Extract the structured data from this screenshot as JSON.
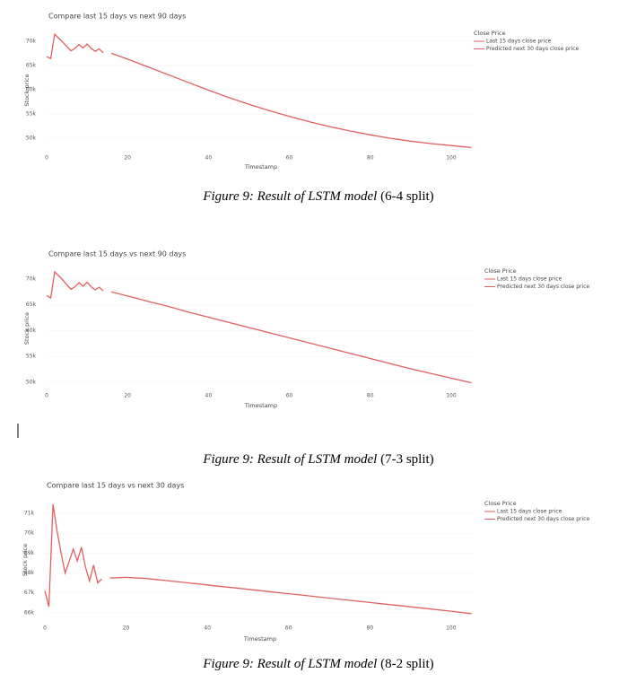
{
  "chart_data": [
    {
      "type": "line",
      "title": "Compare last 15 days vs next 90 days",
      "xlabel": "Timestamp",
      "ylabel": "Stock price",
      "legend_title": "Close Price",
      "caption": [
        "Figure 9: Result of LSTM model",
        "(6-4 split)"
      ],
      "xlim": [
        0,
        106
      ],
      "xticks": [
        0,
        20,
        40,
        60,
        80,
        100
      ],
      "ylim": [
        47800,
        72000
      ],
      "yticks": [
        {
          "value": 50000,
          "label": "50k"
        },
        {
          "value": 55000,
          "label": "55k"
        },
        {
          "value": 60000,
          "label": "60k"
        },
        {
          "value": 65000,
          "label": "65k"
        },
        {
          "value": 70000,
          "label": "70k"
        }
      ],
      "series": [
        {
          "name": "Last 15 days close price",
          "color": "#e06060",
          "x": [
            0,
            1,
            2,
            3,
            4,
            5,
            6,
            7,
            8,
            9,
            10,
            11,
            12,
            13,
            14
          ],
          "values": [
            66800,
            66400,
            71400,
            70600,
            69800,
            68900,
            68000,
            68500,
            69300,
            68600,
            69400,
            68500,
            67900,
            68400,
            67600
          ]
        },
        {
          "name": "Predicted next 30 days close price",
          "color": "#e06060",
          "x": [
            16,
            20,
            25,
            30,
            35,
            40,
            45,
            50,
            55,
            60,
            65,
            70,
            75,
            80,
            85,
            90,
            95,
            100,
            105
          ],
          "values": [
            67500,
            66300,
            64700,
            63100,
            61500,
            59900,
            58400,
            57000,
            55700,
            54500,
            53400,
            52400,
            51500,
            50700,
            50000,
            49400,
            48900,
            48500,
            48100
          ]
        }
      ]
    },
    {
      "type": "line",
      "title": "Compare last 15 days vs next 90 days",
      "xlabel": "Timestamp",
      "ylabel": "Stock price",
      "legend_title": "Close Price",
      "caption": [
        "Figure 9: Result of LSTM model",
        "(7-3 split)"
      ],
      "xlim": [
        0,
        106
      ],
      "xticks": [
        0,
        20,
        40,
        60,
        80,
        100
      ],
      "ylim": [
        48950,
        71900
      ],
      "yticks": [
        {
          "value": 50000,
          "label": "50k"
        },
        {
          "value": 55000,
          "label": "55k"
        },
        {
          "value": 60000,
          "label": "60k"
        },
        {
          "value": 65000,
          "label": "65k"
        },
        {
          "value": 70000,
          "label": "70k"
        }
      ],
      "series": [
        {
          "name": "Last 15 days close price",
          "color": "#e06060",
          "x": [
            0,
            1,
            2,
            3,
            4,
            5,
            6,
            7,
            8,
            9,
            10,
            11,
            12,
            13,
            14
          ],
          "values": [
            66800,
            66300,
            71400,
            70600,
            69800,
            68900,
            68000,
            68500,
            69300,
            68600,
            69400,
            68500,
            67900,
            68400,
            67700
          ]
        },
        {
          "name": "Predicted next 30 days close price",
          "color": "#e06060",
          "x": [
            16,
            20,
            25,
            30,
            35,
            40,
            45,
            50,
            55,
            60,
            65,
            70,
            75,
            80,
            85,
            90,
            95,
            100,
            105
          ],
          "values": [
            67500,
            66700,
            65700,
            64700,
            63600,
            62600,
            61600,
            60600,
            59600,
            58600,
            57600,
            56600,
            55600,
            54600,
            53600,
            52600,
            51700,
            50800,
            49900
          ]
        }
      ]
    },
    {
      "type": "line",
      "title": "Compare last 15 days vs next 30 days",
      "xlabel": "Timestamp",
      "ylabel": "Stock price",
      "legend_title": "Close Price",
      "caption": [
        "Figure 9: Result of LSTM model",
        "(8-2 split)"
      ],
      "xlim": [
        0,
        106
      ],
      "xticks": [
        0,
        20,
        40,
        60,
        80,
        100
      ],
      "ylim": [
        65680,
        71630
      ],
      "yticks": [
        {
          "value": 66000,
          "label": "66k"
        },
        {
          "value": 67000,
          "label": "67k"
        },
        {
          "value": 68000,
          "label": "68k"
        },
        {
          "value": 69000,
          "label": "69k"
        },
        {
          "value": 70000,
          "label": "70k"
        },
        {
          "value": 71000,
          "label": "71k"
        }
      ],
      "series": [
        {
          "name": "Last 15 days close price",
          "color": "#e06060",
          "x": [
            0,
            1,
            2,
            3,
            4,
            5,
            6,
            7,
            8,
            9,
            10,
            11,
            12,
            13,
            14
          ],
          "values": [
            67100,
            66300,
            71450,
            70100,
            69000,
            68000,
            68600,
            69200,
            68600,
            69300,
            68300,
            67600,
            68400,
            67500,
            67700
          ]
        },
        {
          "name": "Predicted next 30 days close price",
          "color": "#e06060",
          "x": [
            16,
            20,
            25,
            30,
            35,
            40,
            45,
            50,
            55,
            60,
            65,
            70,
            75,
            80,
            85,
            90,
            95,
            100,
            105
          ],
          "values": [
            67750,
            67780,
            67720,
            67620,
            67510,
            67400,
            67290,
            67180,
            67070,
            66960,
            66850,
            66740,
            66630,
            66520,
            66410,
            66300,
            66190,
            66080,
            65960
          ]
        }
      ]
    }
  ]
}
